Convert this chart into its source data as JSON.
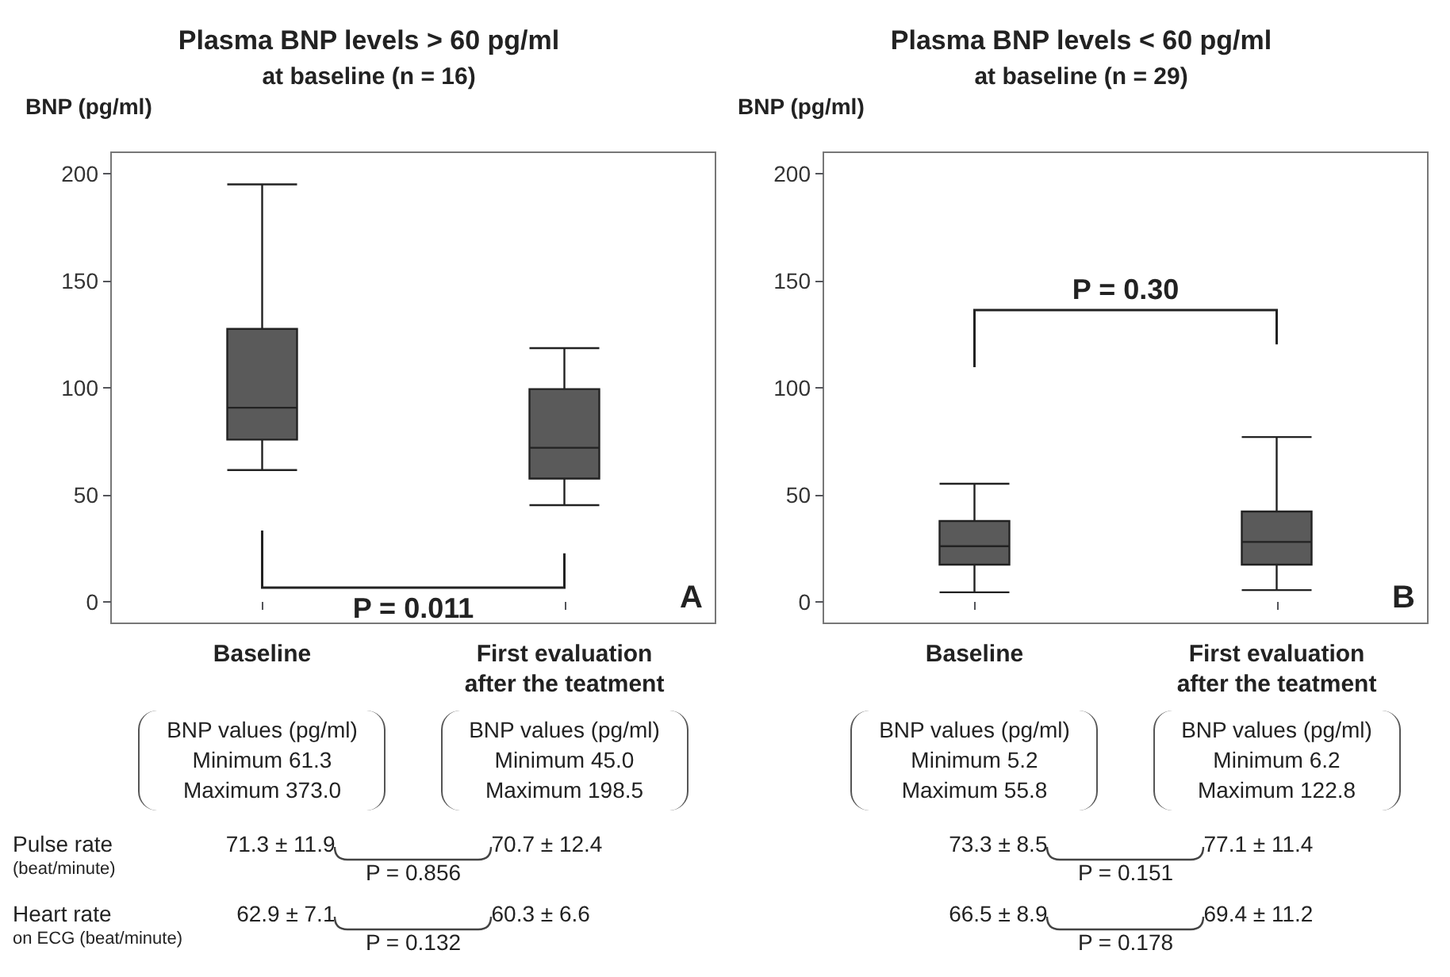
{
  "chart_data": [
    {
      "type": "box",
      "title": "Plasma BNP levels > 60 pg/ml",
      "subtitle": "at baseline (n = 16)",
      "ylabel": "BNP (pg/ml)",
      "categories": [
        "Baseline",
        "First evaluation\nafter the teatment"
      ],
      "color": "#5a5a5a",
      "boxes": [
        {
          "low": 61.6,
          "q1": 75.8,
          "median": 90.7,
          "q3": 127.5,
          "high": 195
        },
        {
          "low": 45.2,
          "q1": 57.6,
          "median": 72,
          "q3": 99.4,
          "high": 118.5
        }
      ],
      "ylim": [
        -10,
        210
      ],
      "yticks": [
        0,
        50,
        100,
        150,
        200
      ],
      "grid": false,
      "annotations": [
        "P = 0.011",
        "A",
        "BNP values (pg/ml)\nMinimum 61.3\nMaximum 373.0",
        "BNP values (pg/ml)\nMinimum 45.0\nMaximum 198.5",
        "Pulse rate\n(beat/minute)",
        "71.3 ± 11.9",
        "70.7 ± 12.4",
        "P = 0.856",
        "Heart rate\non ECG (beat/minute)",
        "62.9 ± 7.1",
        "60.3 ± 6.6",
        "P = 0.132"
      ]
    },
    {
      "type": "box",
      "title": "Plasma BNP levels < 60 pg/ml",
      "subtitle": "at baseline (n = 29)",
      "ylabel": "BNP (pg/ml)",
      "categories": [
        "Baseline",
        "First evaluation\nafter the teatment"
      ],
      "color": "#5a5a5a",
      "boxes": [
        {
          "low": 4.5,
          "q1": 17.4,
          "median": 26,
          "q3": 37.8,
          "high": 55.2
        },
        {
          "low": 5.5,
          "q1": 17.4,
          "median": 28,
          "q3": 42.2,
          "high": 77
        }
      ],
      "ylim": [
        -10,
        210
      ],
      "yticks": [
        0,
        50,
        100,
        150,
        200
      ],
      "grid": false,
      "annotations": [
        "P = 0.30",
        "B",
        "BNP values (pg/ml)\nMinimum 5.2\nMaximum 55.8",
        "BNP values (pg/ml)\nMinimum 6.2\nMaximum 122.8",
        "73.3 ± 8.5",
        "77.1 ± 11.4",
        "P = 0.151",
        "66.5 ± 8.9",
        "69.4 ± 11.2",
        "P = 0.178"
      ]
    }
  ]
}
